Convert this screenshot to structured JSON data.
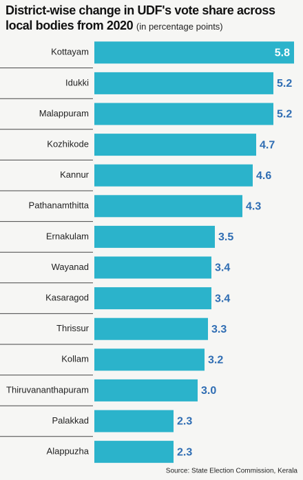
{
  "chart_data": {
    "type": "bar",
    "orientation": "horizontal",
    "title": "District-wise change in UDF's vote share across local bodies from 2020",
    "subtitle": "(in percentage points)",
    "categories": [
      "Kottayam",
      "Idukki",
      "Malappuram",
      "Kozhikode",
      "Kannur",
      "Pathanamthitta",
      "Ernakulam",
      "Wayanad",
      "Kasaragod",
      "Thrissur",
      "Kollam",
      "Thiruvananthapuram",
      "Palakkad",
      "Alappuzha"
    ],
    "values": [
      5.8,
      5.2,
      5.2,
      4.7,
      4.6,
      4.3,
      3.5,
      3.4,
      3.4,
      3.3,
      3.2,
      3.0,
      2.3,
      2.3
    ],
    "value_labels": [
      "5.8",
      "5.2",
      "5.2",
      "4.7",
      "4.6",
      "4.3",
      "3.5",
      "3.4",
      "3.4",
      "3.3",
      "3.2",
      "3.0",
      "2.3",
      "2.3"
    ],
    "color": "#2bb3cb",
    "label_color": "#2f6db3",
    "source": "Source: State Election Commission, Kerala"
  }
}
